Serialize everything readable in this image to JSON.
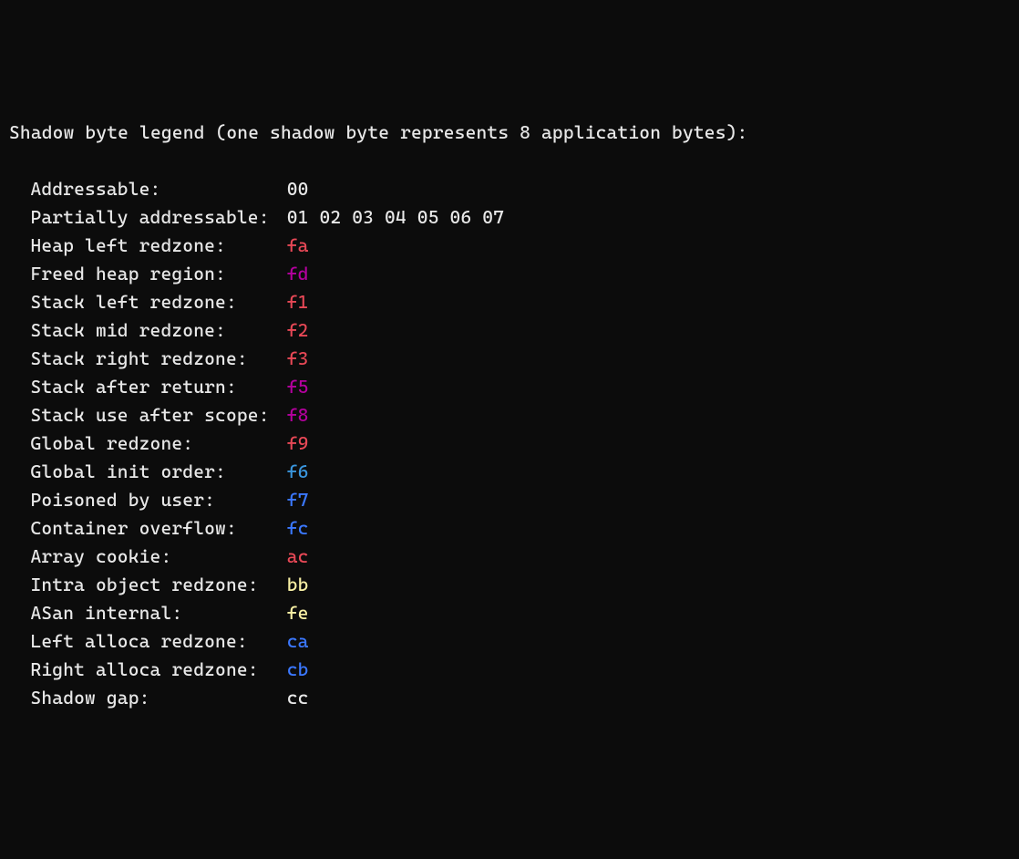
{
  "header": "Shadow byte legend (one shadow byte represents 8 application bytes):",
  "label_width_ch": 24,
  "colors": {
    "white": "#e8e8e8",
    "red": "#e74856",
    "magenta": "#b4009e",
    "cyan": "#3a96dd",
    "blue": "#3b78ff",
    "yellow": "#f9f1a5"
  },
  "rows": [
    {
      "label": "Addressable:",
      "value": "00",
      "color_class": "c-white"
    },
    {
      "label": "Partially addressable:",
      "value": "01 02 03 04 05 06 07",
      "color_class": "c-white"
    },
    {
      "label": "Heap left redzone:",
      "value": "fa",
      "color_class": "c-red"
    },
    {
      "label": "Freed heap region:",
      "value": "fd",
      "color_class": "c-magenta"
    },
    {
      "label": "Stack left redzone:",
      "value": "f1",
      "color_class": "c-red"
    },
    {
      "label": "Stack mid redzone:",
      "value": "f2",
      "color_class": "c-red"
    },
    {
      "label": "Stack right redzone:",
      "value": "f3",
      "color_class": "c-red"
    },
    {
      "label": "Stack after return:",
      "value": "f5",
      "color_class": "c-magenta"
    },
    {
      "label": "Stack use after scope:",
      "value": "f8",
      "color_class": "c-magenta"
    },
    {
      "label": "Global redzone:",
      "value": "f9",
      "color_class": "c-red"
    },
    {
      "label": "Global init order:",
      "value": "f6",
      "color_class": "c-cyan"
    },
    {
      "label": "Poisoned by user:",
      "value": "f7",
      "color_class": "c-blue"
    },
    {
      "label": "Container overflow:",
      "value": "fc",
      "color_class": "c-blue"
    },
    {
      "label": "Array cookie:",
      "value": "ac",
      "color_class": "c-red"
    },
    {
      "label": "Intra object redzone:",
      "value": "bb",
      "color_class": "c-yellow"
    },
    {
      "label": "ASan internal:",
      "value": "fe",
      "color_class": "c-yellow"
    },
    {
      "label": "Left alloca redzone:",
      "value": "ca",
      "color_class": "c-blue"
    },
    {
      "label": "Right alloca redzone:",
      "value": "cb",
      "color_class": "c-blue"
    },
    {
      "label": "Shadow gap:",
      "value": "cc",
      "color_class": "c-white"
    }
  ]
}
